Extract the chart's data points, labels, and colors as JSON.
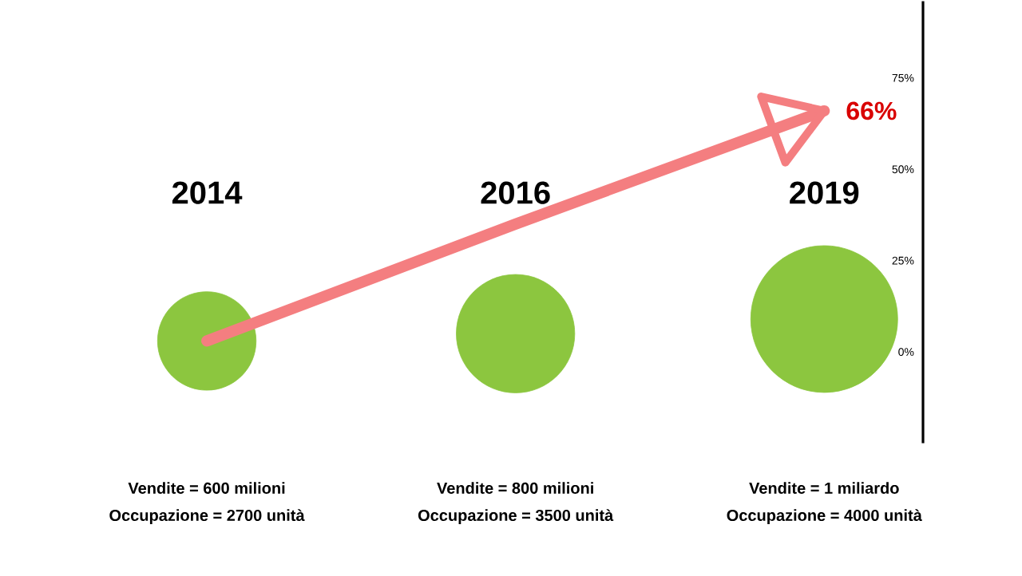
{
  "chart_data": {
    "type": "bubble",
    "categories": [
      "2014",
      "2016",
      "2019"
    ],
    "series": [
      {
        "color": "#8cc63f",
        "values": [
          3,
          5,
          9
        ],
        "sizes": [
          0.45,
          0.65,
          1
        ]
      },
      {
        "type": "line",
        "color": "#f47e80",
        "values": [
          3,
          35,
          66
        ]
      }
    ],
    "ylim": [
      -25,
      96
    ],
    "yticks": [
      {
        "value": 0,
        "label": "0%"
      },
      {
        "value": 25,
        "label": "25%"
      },
      {
        "value": 50,
        "label": "50%"
      },
      {
        "value": 75,
        "label": "75%"
      }
    ],
    "annotations": [
      "Vendite = 600 milioni",
      "Occupazione = 2700 unità",
      "Vendite = 800 milioni",
      "Occupazione = 3500 unità",
      "Vendite = 1 miliardo",
      "Occupazione = 4000 unità",
      {
        "text": "66%",
        "x": "2019",
        "y": 66
      }
    ]
  }
}
